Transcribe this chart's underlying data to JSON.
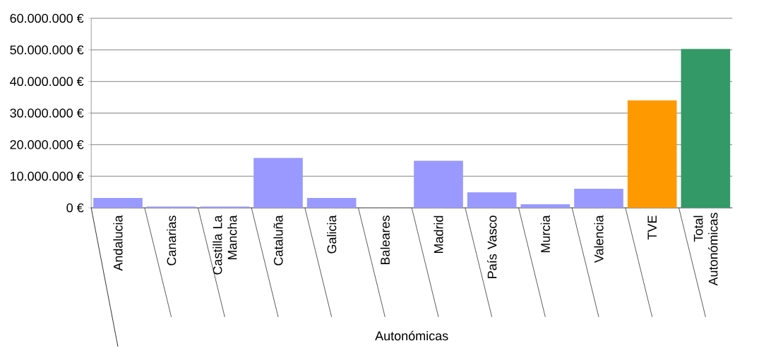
{
  "chart_data": {
    "type": "bar",
    "xlabel": "Autonómicas",
    "categories": [
      "Andalucia",
      "Canarias",
      "Castilla La Mancha",
      "Cataluña",
      "Galicia",
      "Baleares",
      "Madrid",
      "País Vasco",
      "Murcia",
      "Valencia",
      "TVE",
      "Total Autonómicas"
    ],
    "values": [
      3100000,
      400000,
      400000,
      15800000,
      3100000,
      0,
      14900000,
      4900000,
      1100000,
      6000000,
      34000000,
      50300000
    ],
    "colors": [
      "#9999ff",
      "#9999ff",
      "#9999ff",
      "#9999ff",
      "#9999ff",
      "#9999ff",
      "#9999ff",
      "#9999ff",
      "#9999ff",
      "#9999ff",
      "#ff9900",
      "#339966"
    ],
    "ylim": [
      0,
      60000000
    ],
    "yticks": [
      {
        "value": 0,
        "label": "0 €"
      },
      {
        "value": 10000000,
        "label": "10.000.000 €"
      },
      {
        "value": 20000000,
        "label": "20.000.000 €"
      },
      {
        "value": 30000000,
        "label": "30.000.000 €"
      },
      {
        "value": 40000000,
        "label": "40.000.000 €"
      },
      {
        "value": 50000000,
        "label": "50.000.000 €"
      },
      {
        "value": 60000000,
        "label": "60.000.000 €"
      }
    ],
    "grid": "y"
  }
}
